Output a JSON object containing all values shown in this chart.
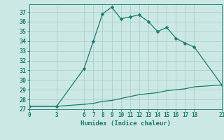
{
  "xlabel": "Humidex (Indice chaleur)",
  "background_color": "#cce8e4",
  "line_color": "#1a7a6e",
  "grid_color": "#aacfca",
  "series1_x": [
    0,
    3,
    6,
    7,
    8,
    9,
    10,
    11,
    12,
    13,
    14,
    15,
    16,
    17,
    18,
    21
  ],
  "series1_y": [
    27.3,
    27.3,
    31.2,
    34.0,
    36.8,
    37.5,
    36.3,
    36.5,
    36.7,
    36.0,
    35.0,
    35.4,
    34.3,
    33.8,
    33.4,
    29.5
  ],
  "series2_x": [
    0,
    3,
    6,
    7,
    8,
    9,
    10,
    11,
    12,
    13,
    14,
    15,
    16,
    17,
    18,
    21
  ],
  "series2_y": [
    27.3,
    27.3,
    27.5,
    27.6,
    27.8,
    27.9,
    28.1,
    28.3,
    28.5,
    28.6,
    28.7,
    28.9,
    29.0,
    29.1,
    29.3,
    29.5
  ],
  "xlim": [
    0,
    21
  ],
  "ylim": [
    27,
    37.8
  ],
  "xticks": [
    0,
    3,
    6,
    7,
    8,
    9,
    10,
    11,
    12,
    13,
    14,
    15,
    16,
    17,
    18,
    21
  ],
  "yticks": [
    27,
    28,
    29,
    30,
    31,
    32,
    33,
    34,
    35,
    36,
    37
  ],
  "markersize": 2.5,
  "linewidth": 0.9
}
